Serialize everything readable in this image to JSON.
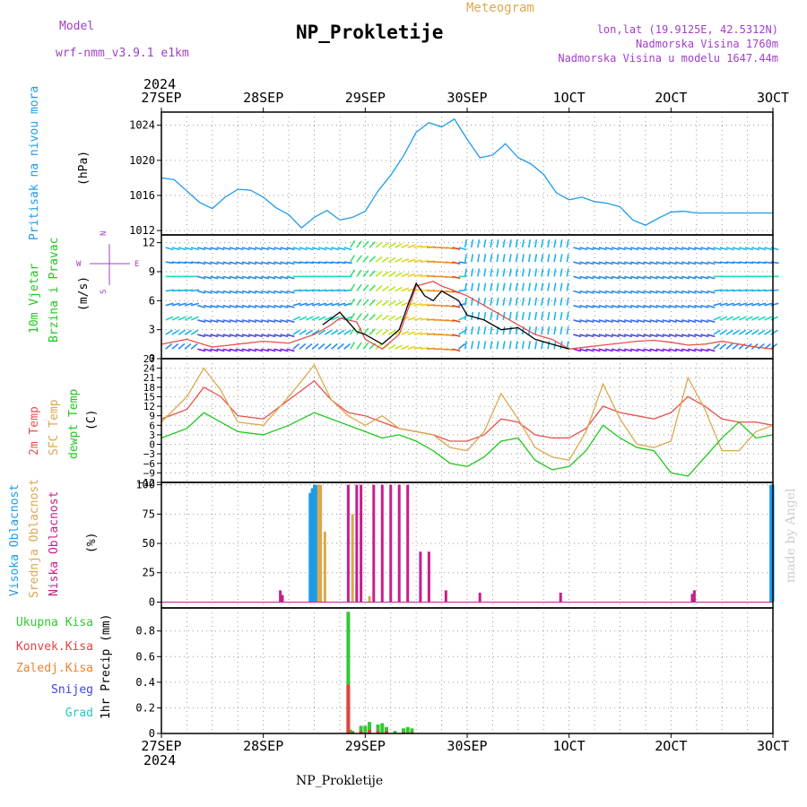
{
  "header": {
    "model_label": "Model",
    "model_name": "wrf-nmm_v3.9.1  e1km",
    "title": "NP_Prokletije",
    "subtitle": "Meteogram",
    "lonlat": "lon,lat (19.9125E, 42.5312N)",
    "elevation": "Nadmorska Visina 1760m",
    "model_elevation": "Nadmorska Visina u modelu 1647.44m",
    "year": "2024",
    "footer": "NP_Prokletije",
    "credit": "made by Angel"
  },
  "colors": {
    "pressure": "#1e9be8",
    "t2m": "#e8504a",
    "sfc": "#dba84e",
    "dewpt": "#1ec81e",
    "high_cloud": "#1e9be8",
    "mid_cloud": "#dba84e",
    "low_cloud": "#c81e8c",
    "wind_avg": "#e8504a",
    "wind_gust": "#000000",
    "total_precip": "#32c832",
    "conv_precip": "#e84040",
    "frz_precip": "#f08030",
    "snow": "#4040e8",
    "hail": "#20c8c8"
  },
  "chart_data": {
    "x_ticks": [
      "27SEP",
      "28SEP",
      "29SEP",
      "30SEP",
      "1OCT",
      "2OCT",
      "3OCT"
    ],
    "x_tick_labels": [
      "27SEP",
      "28SEP",
      "29SEP",
      "30SEP",
      "1OCT",
      "2OCT",
      "3OCT"
    ],
    "x_range_hours": [
      0,
      144
    ],
    "panels": [
      {
        "id": "pressure",
        "type": "line",
        "ylabel": [
          "Pritisak na nivou mora",
          "(hPa)"
        ],
        "ylim": [
          1011.5,
          1025.5
        ],
        "yticks": [
          1012,
          1016,
          1020,
          1024
        ],
        "series": [
          {
            "name": "MSLP",
            "color": "pressure",
            "x": [
              0,
              3,
              6,
              9,
              12,
              15,
              18,
              21,
              24,
              27,
              30,
              33,
              36,
              39,
              42,
              45,
              48,
              51,
              54,
              57,
              60,
              63,
              66,
              69,
              72,
              75,
              78,
              81,
              84,
              87,
              90,
              93,
              96,
              99,
              102,
              105,
              108,
              111,
              114,
              117,
              120,
              123,
              126,
              129,
              132,
              135,
              138,
              141,
              144
            ],
            "y": [
              1018,
              1017.8,
              1016.5,
              1015.2,
              1014.5,
              1015.8,
              1016.7,
              1016.6,
              1015.8,
              1014.6,
              1013.8,
              1012.3,
              1013.5,
              1014.3,
              1013.2,
              1013.5,
              1014.2,
              1016.5,
              1018.3,
              1020.5,
              1023.2,
              1024.3,
              1023.8,
              1024.7,
              1022.4,
              1020.3,
              1020.6,
              1021.9,
              1020.3,
              1019.6,
              1018.4,
              1016.3,
              1015.5,
              1015.8,
              1015.3,
              1015.1,
              1014.7,
              1013.2,
              1012.6,
              1013.4,
              1014.1,
              1014.2,
              1014.0,
              1014.0,
              1014.0,
              1014.0,
              1014.0,
              1014.0,
              1014.0
            ]
          }
        ]
      },
      {
        "id": "wind",
        "type": "line",
        "ylabel": [
          "10m Vjetar",
          "Brzina i Pravac",
          "(m/s)"
        ],
        "compass_labels": [
          "W",
          "E",
          "N",
          "S"
        ],
        "ylim": [
          0,
          12.8
        ],
        "yticks": [
          0,
          3,
          6,
          9,
          12
        ],
        "series": [
          {
            "name": "avg",
            "color": "wind_avg",
            "x": [
              0,
              6,
              12,
              18,
              24,
              30,
              36,
              40,
              42,
              46,
              48,
              52,
              56,
              60,
              64,
              66,
              68,
              72,
              76,
              80,
              84,
              88,
              92,
              96,
              100,
              104,
              108,
              112,
              116,
              120,
              124,
              128,
              132,
              136,
              140,
              144
            ],
            "y": [
              1.5,
              2.0,
              1.2,
              1.5,
              1.8,
              1.6,
              2.5,
              3.5,
              4.2,
              3.8,
              2.0,
              1.0,
              2.5,
              7.5,
              8.0,
              7.5,
              7.2,
              6.5,
              5.5,
              4.5,
              3.5,
              2.5,
              2.0,
              1.0,
              1.2,
              1.4,
              1.6,
              1.8,
              1.9,
              1.7,
              1.4,
              1.5,
              1.8,
              1.5,
              1.2,
              1.0
            ]
          },
          {
            "name": "gust",
            "color": "wind_gust",
            "x": [
              38,
              42,
              46,
              48,
              52,
              56,
              58,
              60,
              62,
              64,
              66,
              68,
              70,
              72,
              76,
              80,
              84,
              88,
              92,
              96
            ],
            "y": [
              3.5,
              4.8,
              2.8,
              2.5,
              1.5,
              3.0,
              5.5,
              7.8,
              6.5,
              6.0,
              7.0,
              6.5,
              6.0,
              4.5,
              4.0,
              3.0,
              3.2,
              2.0,
              1.5,
              1.0
            ]
          }
        ]
      },
      {
        "id": "temp",
        "type": "line",
        "ylabel": [
          "2m Temp",
          "SFC Temp",
          "dewpt Temp",
          "(C)"
        ],
        "ylim": [
          -12,
          27
        ],
        "yticks": [
          -12,
          -9,
          -6,
          -3,
          0,
          3,
          6,
          9,
          12,
          15,
          18,
          21,
          24,
          27
        ],
        "series": [
          {
            "name": "2m",
            "color": "t2m",
            "x": [
              0,
              6,
              10,
              14,
              18,
              24,
              30,
              36,
              40,
              44,
              48,
              52,
              56,
              60,
              64,
              68,
              72,
              76,
              80,
              84,
              88,
              92,
              96,
              100,
              104,
              108,
              112,
              116,
              120,
              124,
              128,
              132,
              136,
              140,
              144
            ],
            "y": [
              8,
              11,
              18,
              15,
              9,
              8,
              14,
              20,
              14,
              10,
              9,
              7,
              5,
              4,
              3,
              1,
              1,
              3,
              8,
              7,
              3,
              2,
              2,
              5,
              12,
              10,
              9,
              8,
              10,
              15,
              12,
              8,
              7,
              7,
              6
            ]
          },
          {
            "name": "sfc",
            "color": "sfc",
            "x": [
              0,
              6,
              10,
              14,
              18,
              24,
              30,
              36,
              40,
              44,
              48,
              52,
              56,
              60,
              64,
              68,
              72,
              76,
              80,
              84,
              88,
              92,
              96,
              100,
              104,
              108,
              112,
              116,
              120,
              124,
              128,
              132,
              136,
              140,
              144
            ],
            "y": [
              7,
              15,
              24,
              17,
              7,
              6,
              15,
              25,
              14,
              9,
              6,
              9,
              5,
              4,
              3,
              -1,
              -2,
              4,
              16,
              8,
              -1,
              -4,
              -5,
              4,
              19,
              8,
              0,
              -1,
              1,
              21,
              11,
              -2,
              -2,
              4,
              6
            ]
          },
          {
            "name": "dewpt",
            "color": "dewpt",
            "x": [
              0,
              6,
              10,
              14,
              18,
              24,
              30,
              36,
              40,
              44,
              48,
              52,
              56,
              60,
              64,
              68,
              72,
              76,
              80,
              84,
              88,
              92,
              96,
              100,
              104,
              108,
              112,
              116,
              120,
              124,
              128,
              132,
              136,
              140,
              144
            ],
            "y": [
              2,
              5,
              10,
              7,
              4,
              3,
              6,
              10,
              8,
              6,
              4,
              2,
              3,
              1,
              -2,
              -6,
              -7,
              -4,
              1,
              2,
              -5,
              -8,
              -7,
              -2,
              6,
              2,
              -1,
              -2,
              -9,
              -10,
              -4,
              2,
              7,
              2,
              3
            ]
          }
        ]
      },
      {
        "id": "cloud",
        "type": "bar",
        "ylabel": [
          "Visoka Oblacnost",
          "Srednja Oblacnost",
          "Niska Oblacnost",
          "(%)"
        ],
        "ylim": [
          -5,
          102
        ],
        "yticks": [
          0,
          25,
          50,
          75,
          100
        ],
        "series": [
          {
            "name": "high",
            "color": "high_cloud",
            "x": [
              35,
              35.5,
              36,
              36.5,
              143.5,
              144
            ],
            "y": [
              93,
              97,
              100,
              100,
              100,
              100
            ]
          },
          {
            "name": "mid",
            "color": "mid_cloud",
            "x": [
              37,
              37.5,
              38.5,
              45,
              46,
              49
            ],
            "y": [
              100,
              100,
              60,
              75,
              15,
              5
            ]
          },
          {
            "name": "low",
            "color": "low_cloud",
            "x": [
              28,
              28.5,
              44,
              46,
              47,
              50,
              52,
              54,
              56,
              58,
              61,
              63,
              67,
              75,
              94,
              125,
              125.5
            ],
            "y": [
              10,
              6,
              100,
              100,
              100,
              100,
              100,
              100,
              100,
              100,
              43,
              43,
              10,
              8,
              8,
              7,
              10
            ]
          }
        ]
      },
      {
        "id": "precip",
        "type": "bar",
        "ylabel": [
          "1hr Precip (mm)"
        ],
        "legend": [
          "Ukupna Kisa",
          "Konvek.Kisa",
          "Zaledj.Kisa",
          "Snijeg",
          "Grad"
        ],
        "ylim": [
          0,
          0.98
        ],
        "yticks": [
          0,
          0.2,
          0.4,
          0.6,
          0.8
        ],
        "ytick_labels": [
          "0",
          "0.2",
          "0.4",
          "0.6",
          "0.8"
        ],
        "series": [
          {
            "name": "total",
            "color": "total_precip",
            "x": [
              44,
              44.5,
              45,
              47,
              48,
              49,
              51,
              52,
              53,
              55,
              57,
              58,
              59
            ],
            "y": [
              0.95,
              0.03,
              0.02,
              0.06,
              0.06,
              0.09,
              0.07,
              0.08,
              0.05,
              0.02,
              0.04,
              0.05,
              0.04
            ]
          },
          {
            "name": "conv",
            "color": "conv_precip",
            "x": [
              44,
              45,
              47,
              49,
              51,
              53,
              57,
              59
            ],
            "y": [
              0.38,
              0.01,
              0.02,
              0.03,
              0.02,
              0.02,
              0.01,
              0.01
            ]
          }
        ]
      }
    ]
  }
}
